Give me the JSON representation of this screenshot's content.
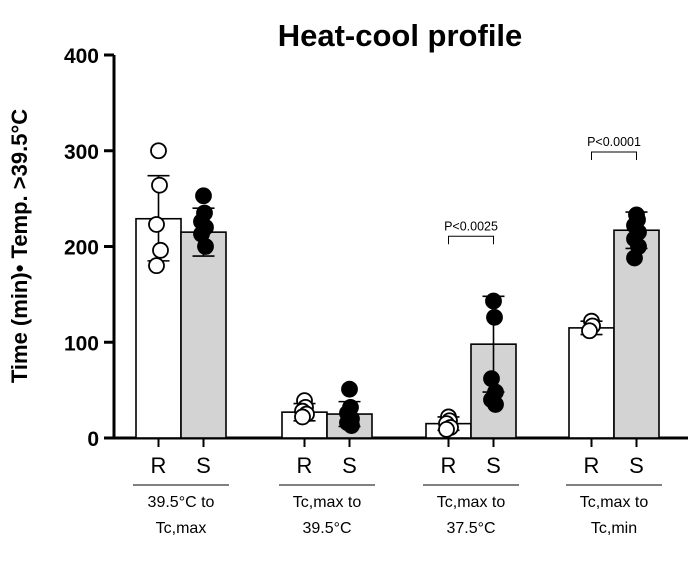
{
  "chart_data": {
    "type": "bar",
    "title": "Heat-cool profile",
    "ylabel": "Time (min)• Temp. >39.5°C",
    "xlabel": "",
    "ylim": [
      0,
      400
    ],
    "yticks": [
      0,
      100,
      200,
      300,
      400
    ],
    "grid": false,
    "colors": {
      "R": "#ffffff",
      "S": "#d3d3d3",
      "edge": "#000000"
    },
    "groups": [
      {
        "label_line1": "39.5°C to",
        "label_line2": "Tc,max",
        "bars": [
          {
            "name": "R",
            "mean": 229,
            "sd_low": 185,
            "sd_high": 274,
            "points": [
              300,
              264,
              223,
              196,
              180
            ]
          },
          {
            "name": "S",
            "mean": 215,
            "sd_low": 190,
            "sd_high": 240,
            "points": [
              253,
              235,
              226,
              220,
              213,
              200
            ]
          }
        ],
        "pvalue": null
      },
      {
        "label_line1": "Tc,max to",
        "label_line2": "39.5°C",
        "bars": [
          {
            "name": "R",
            "mean": 27,
            "sd_low": 18,
            "sd_high": 36,
            "points": [
              39,
              32,
              28,
              25,
              22
            ]
          },
          {
            "name": "S",
            "mean": 25,
            "sd_low": 12,
            "sd_high": 38,
            "points": [
              51,
              32,
              26,
              20,
              16,
              13
            ]
          }
        ],
        "pvalue": null
      },
      {
        "label_line1": "Tc,max to",
        "label_line2": "37.5°C",
        "bars": [
          {
            "name": "R",
            "mean": 15,
            "sd_low": 8,
            "sd_high": 22,
            "points": [
              22,
              18,
              15,
              11,
              9
            ]
          },
          {
            "name": "S",
            "mean": 98,
            "sd_low": 48,
            "sd_high": 148,
            "points": [
              143,
              126,
              62,
              48,
              40,
              35
            ]
          }
        ],
        "pvalue": "P<0.0025"
      },
      {
        "label_line1": "Tc,max to",
        "label_line2": "Tc,min",
        "bars": [
          {
            "name": "R",
            "mean": 115,
            "sd_low": 108,
            "sd_high": 122,
            "points": [
              122,
              117,
              112
            ]
          },
          {
            "name": "S",
            "mean": 217,
            "sd_low": 198,
            "sd_high": 236,
            "points": [
              233,
              228,
              222,
              215,
              208,
              200,
              188
            ]
          }
        ],
        "pvalue": "P<0.0001"
      }
    ]
  }
}
